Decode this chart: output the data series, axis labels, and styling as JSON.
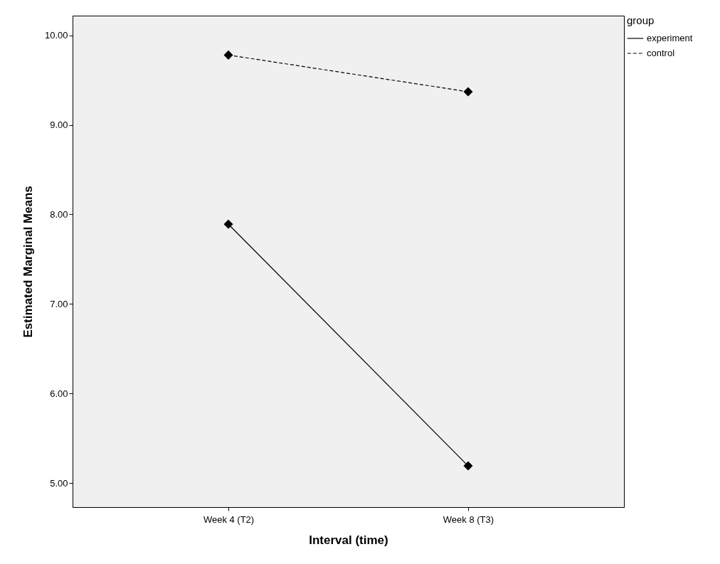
{
  "chart_data": {
    "type": "line",
    "xlabel": "Interval (time)",
    "ylabel": "Estimated Marginal Means",
    "legend_title": "group",
    "categories": [
      "Week 4 (T2)",
      "Week 8 (T3)"
    ],
    "series": [
      {
        "name": "experiment",
        "color": "#000000",
        "line_style": "solid",
        "values": [
          7.89,
          5.19
        ]
      },
      {
        "name": "control",
        "color": "#000000",
        "line_style": "dashed",
        "values": [
          9.78,
          9.37
        ]
      }
    ],
    "ylim": [
      4.73,
      10.22
    ],
    "yticks": [
      {
        "value": 5,
        "label": "5.00"
      },
      {
        "value": 6,
        "label": "6.00"
      },
      {
        "value": 7,
        "label": "7.00"
      },
      {
        "value": 8,
        "label": "8.00"
      },
      {
        "value": 9,
        "label": "9.00"
      },
      {
        "value": 10,
        "label": "10.00"
      }
    ],
    "grid": false,
    "legend": "top right",
    "marker": "diamond"
  }
}
